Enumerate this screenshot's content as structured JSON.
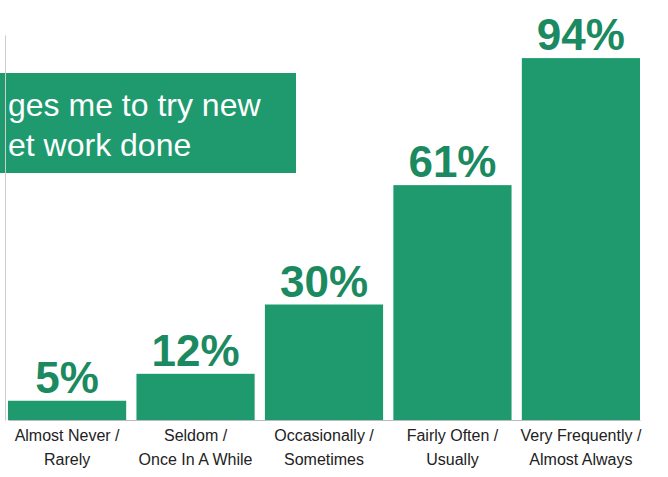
{
  "chart_data": {
    "type": "bar",
    "title": "ges me to try new et work done",
    "categories": [
      "Almost Never / Rarely",
      "Seldom / Once In A While",
      "Occasionally / Sometimes",
      "Fairly Often / Usually",
      "Very Frequently / Almost Always"
    ],
    "values": [
      5,
      12,
      30,
      61,
      94
    ],
    "value_labels": [
      "5%",
      "12%",
      "30%",
      "61%",
      "94%"
    ],
    "color": "#1e9a6e",
    "ylim": [
      0,
      100
    ],
    "data_labels": true,
    "tick_labels": "x"
  }
}
